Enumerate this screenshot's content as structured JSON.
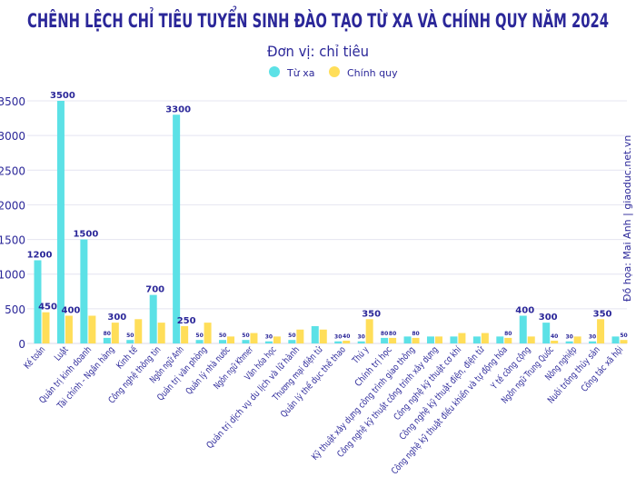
{
  "chart_data": {
    "type": "bar",
    "title": "CHÊNH LỆCH CHỈ TIÊU TUYỂN SINH ĐÀO TẠO TỪ XA VÀ CHÍNH QUY NĂM 2024",
    "subtitle": "Đơn vị: chỉ tiêu",
    "credit": "Đồ họa: Mai Anh | giaoduc.net.vn",
    "legend_position": "top",
    "grid": true,
    "ylim": [
      0,
      3500
    ],
    "yticks": [
      0,
      500,
      1000,
      1500,
      2000,
      2500,
      3000,
      3500
    ],
    "colors": {
      "title": "#2b2799",
      "tu_xa": "#5ce1e6",
      "chinh_quy": "#ffde59",
      "grid": "#e4e4f0"
    },
    "categories": [
      "Kế toán",
      "Luật",
      "Quản trị kinh doanh",
      "Tài chính - Ngân hàng",
      "Kinh tế",
      "Công nghệ thông tin",
      "Ngôn ngữ Anh",
      "Quản trị văn phòng",
      "Quản lý nhà nước",
      "Ngôn ngữ Khmer",
      "Văn hóa học",
      "Quản trị dịch vụ du lịch và lữ hành",
      "Thương mại điện tử",
      "Quản lý thể dục thể thao",
      "Thú y",
      "Chính trị học",
      "Kỹ thuật xây dựng công trình giao thông",
      "Công nghệ kỹ thuật công trình xây dựng",
      "Công nghệ kỹ thuật cơ khí",
      "Công nghệ kỹ thuật điện, điện tử",
      "Công nghệ kỹ thuật điều khiển và tự động hóa",
      "Y tế công cộng",
      "Ngôn ngữ Trung Quốc",
      "Nông nghiệp",
      "Nuôi trồng thủy sản",
      "Công tác xã hội"
    ],
    "series": [
      {
        "name": "Từ xa",
        "values": [
          1200,
          3500,
          1500,
          80,
          50,
          700,
          3300,
          50,
          50,
          50,
          30,
          50,
          250,
          30,
          30,
          80,
          100,
          100,
          100,
          100,
          100,
          400,
          300,
          30,
          30,
          100
        ],
        "labels": [
          "1200",
          "3500",
          "1500",
          "80",
          "50",
          "700",
          "3300",
          "50",
          "50",
          "50",
          "30",
          "50",
          null,
          "30",
          "30",
          "80",
          null,
          null,
          null,
          null,
          null,
          "400",
          "300",
          "30",
          "30",
          null
        ]
      },
      {
        "name": "Chính quy",
        "values": [
          450,
          400,
          400,
          300,
          350,
          300,
          250,
          300,
          100,
          150,
          100,
          200,
          200,
          40,
          350,
          80,
          80,
          100,
          150,
          150,
          80,
          100,
          40,
          100,
          350,
          50
        ],
        "labels": [
          "450",
          "400",
          null,
          "300",
          null,
          null,
          "250",
          null,
          null,
          null,
          null,
          null,
          null,
          "40",
          "350",
          "80",
          "80",
          null,
          null,
          null,
          "80",
          null,
          "40",
          null,
          "350",
          "50"
        ]
      }
    ]
  }
}
